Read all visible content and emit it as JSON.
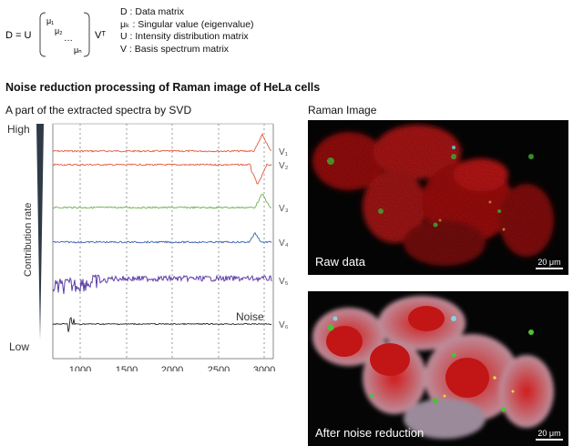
{
  "formula": {
    "lhs": "D = U",
    "mu1": "μ₁",
    "mu2": "μ₂",
    "dots": "…",
    "mun": "μₙ",
    "rhs": "Vᵀ"
  },
  "legend": [
    {
      "sym": "D",
      "text": "Data matrix"
    },
    {
      "sym": "μₖ",
      "text": "Singular value (eigenvalue)"
    },
    {
      "sym": "U",
      "text": "Intensity distribution matrix"
    },
    {
      "sym": "V",
      "text": "Basis spectrum matrix"
    }
  ],
  "section_title": "Noise reduction processing of Raman image of HeLa cells",
  "spectra": {
    "title": "A part of the extracted spectra by SVD",
    "high_label": "High",
    "low_label": "Low",
    "axis_label": "Contribution rate",
    "noise_label": "Noise",
    "x_ticks": [
      "1000",
      "1500",
      "2000",
      "2500",
      "3000"
    ],
    "series": [
      {
        "name": "V₁",
        "color": "#e05a3c"
      },
      {
        "name": "V₂",
        "color": "#e05a3c"
      },
      {
        "name": "V₃",
        "color": "#6bb04a"
      },
      {
        "name": "V₄",
        "color": "#3b62b0"
      },
      {
        "name": "V₅",
        "color": "#5a3fa6"
      },
      {
        "name": "V₆",
        "color": "#222222"
      }
    ]
  },
  "raman": {
    "title": "Raman Image",
    "raw_label": "Raw data",
    "after_label": "After noise reduction",
    "scale_label": "20 μm"
  }
}
